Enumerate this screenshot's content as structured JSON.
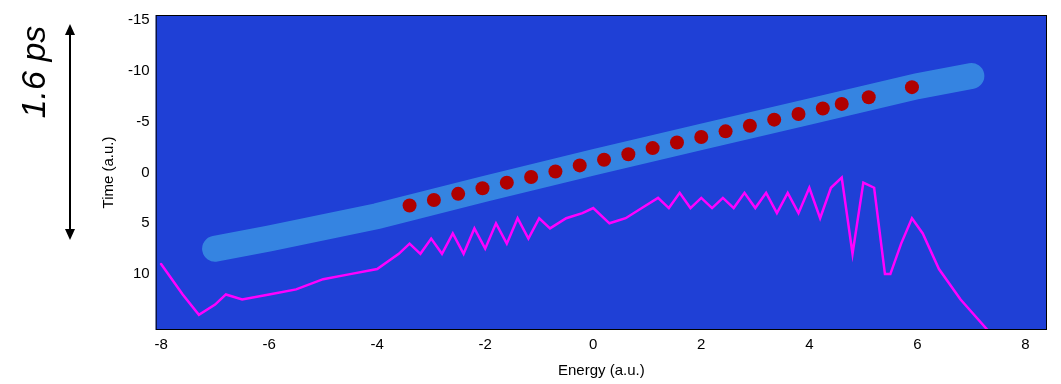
{
  "chart_data": {
    "type": "scatter",
    "x_label": "Energy (a.u.)",
    "y_label": "Time (a.u.)",
    "xlim": [
      -8.1,
      8.4
    ],
    "xticks": [
      -8,
      -6,
      -4,
      -2,
      0,
      2,
      4,
      6,
      8
    ],
    "ylim": [
      15.5,
      -15.5
    ],
    "yticks": [
      10,
      5,
      0,
      -5,
      -10,
      -15
    ],
    "grid": false,
    "tick_labels": true,
    "annotations": [
      {
        "text": "1.6 ps"
      }
    ],
    "series": [
      {
        "type": "line",
        "color": "#ff00ff",
        "line_style": "solid",
        "x": [
          -8,
          -7.6,
          -7.3,
          -7,
          -6.8,
          -6.5,
          -6,
          -5.5,
          -5,
          -4.5,
          -4,
          -3.6,
          -3.4,
          -3.2,
          -3.0,
          -2.8,
          -2.6,
          -2.4,
          -2.2,
          -2.0,
          -1.8,
          -1.6,
          -1.4,
          -1.2,
          -1.0,
          -0.8,
          -0.5,
          -0.2,
          0,
          0.3,
          0.6,
          0.9,
          1.2,
          1.4,
          1.6,
          1.8,
          2.0,
          2.2,
          2.4,
          2.6,
          2.8,
          3.0,
          3.2,
          3.4,
          3.6,
          3.8,
          4.0,
          4.2,
          4.4,
          4.6,
          4.8,
          5.0,
          5.2,
          5.4,
          5.5,
          5.7,
          5.9,
          6.1,
          6.4,
          6.8,
          7.3
        ],
        "values": [
          9,
          12,
          14,
          13,
          12,
          12.5,
          12,
          11.5,
          10.5,
          10,
          9.5,
          8,
          7,
          8,
          6.5,
          8,
          6,
          8,
          5.5,
          7.5,
          5,
          7,
          4.5,
          6.5,
          4.5,
          5.5,
          4.5,
          4,
          3.5,
          5,
          4.5,
          3.5,
          2.5,
          3.5,
          2,
          3.5,
          2.5,
          3.5,
          2.5,
          3.5,
          2,
          3.5,
          2,
          4,
          2,
          4,
          1.5,
          4.5,
          1.5,
          0.5,
          8,
          1,
          1.5,
          10,
          10,
          7,
          4.5,
          6,
          9.5,
          12.5,
          15.5
        ]
      },
      {
        "type": "scatter",
        "color": "#b00000",
        "marker": "circle",
        "x": [
          -3.4,
          -2.95,
          -2.5,
          -2.05,
          -1.6,
          -1.15,
          -0.7,
          -0.25,
          0.2,
          0.65,
          1.1,
          1.55,
          2.0,
          2.45,
          2.9,
          3.35,
          3.8,
          4.25,
          4.6,
          5.1,
          5.9
        ],
        "values": [
          3.25,
          2.7,
          2.1,
          1.55,
          1,
          0.45,
          -0.1,
          -0.7,
          -1.25,
          -1.8,
          -2.4,
          -2.95,
          -3.5,
          -4.05,
          -4.6,
          -5.2,
          -5.75,
          -6.3,
          -6.75,
          -7.4,
          -8.4
        ]
      },
      {
        "type": "line",
        "color": "#4fd8f0",
        "line_style": "solid",
        "x": [
          -7,
          -6,
          -4,
          -2,
          0,
          2,
          4,
          6,
          7
        ],
        "values": [
          7.5,
          6.5,
          4.3,
          1.6,
          -1,
          -3.5,
          -6,
          -8.5,
          -9.5
        ]
      }
    ]
  }
}
